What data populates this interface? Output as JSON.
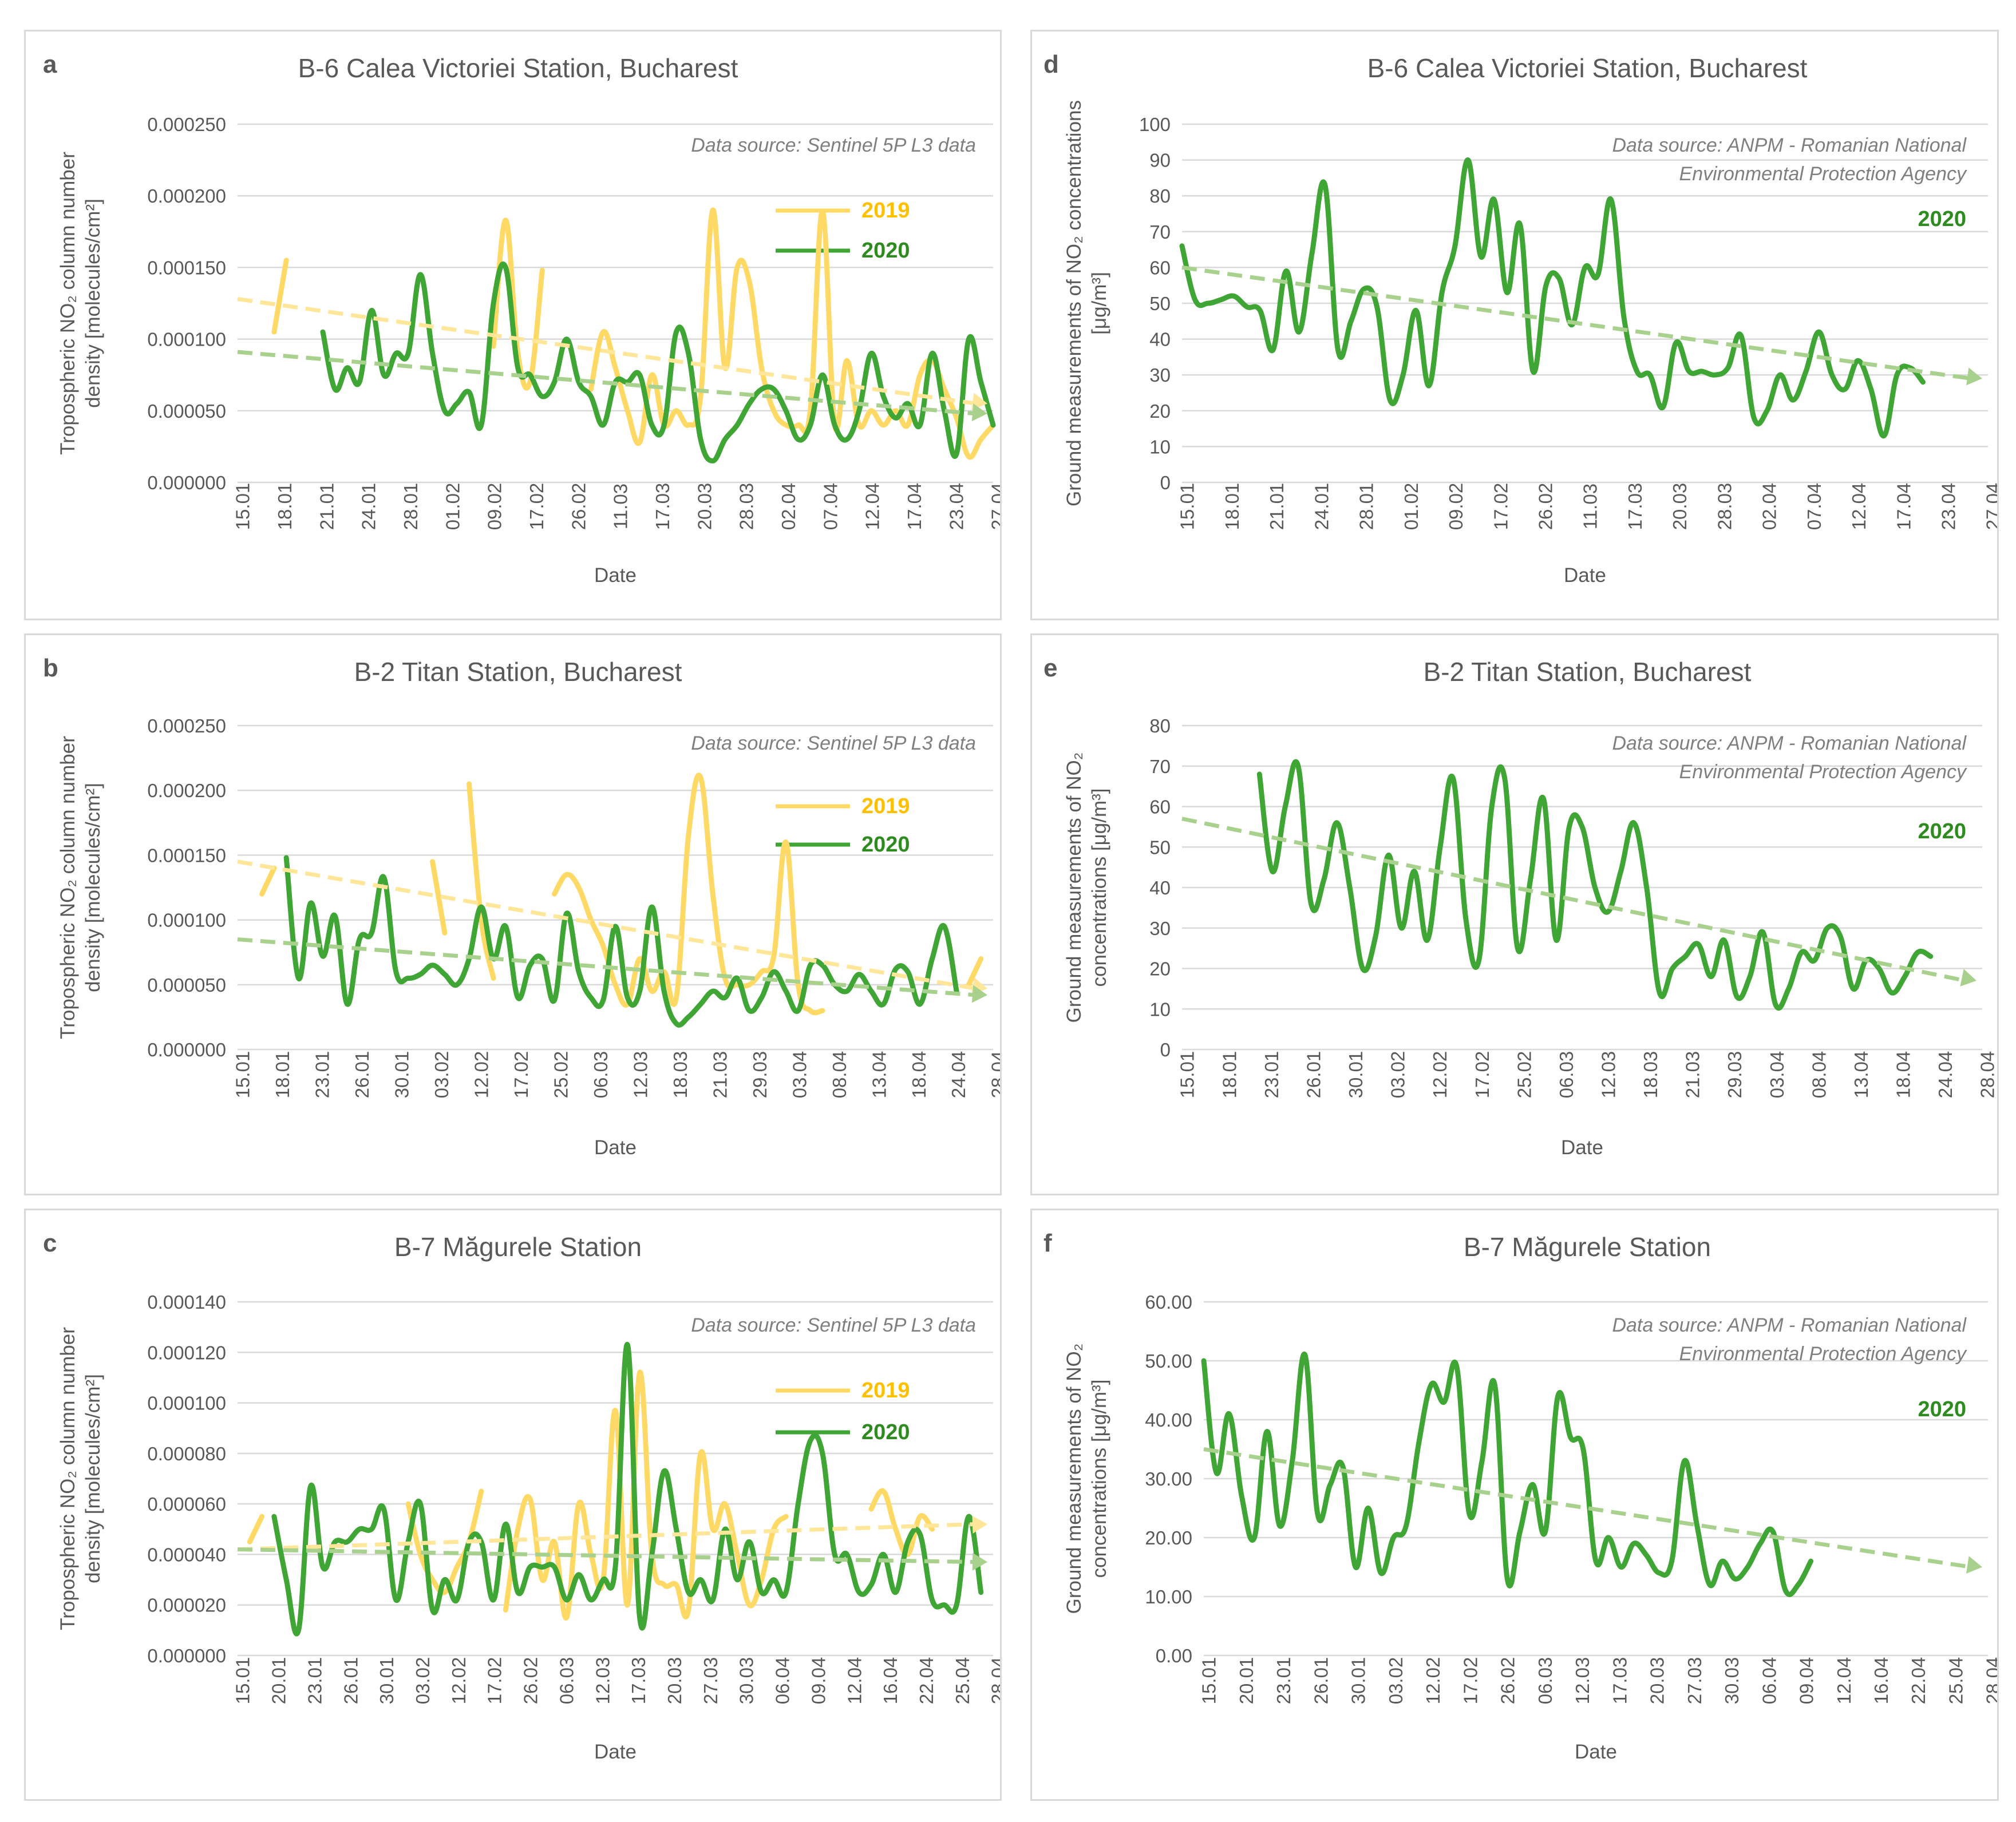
{
  "colors": {
    "y2019": "#FFD966",
    "y2020": "#3FA535",
    "trend2019": "#FFE699",
    "trend2020": "#A9D18E",
    "leg2019": "#FFC000",
    "leg2020": "#2E8B1F"
  },
  "chart_data": [
    {
      "id": "a",
      "letter": "a",
      "type": "line",
      "title": "B-6 Calea Victoriei Station, Bucharest",
      "source": [
        "Data source: Sentinel 5P L3 data"
      ],
      "legend": [
        "2019",
        "2020"
      ],
      "ylabel": [
        "Tropospheric NO₂ column number",
        "density [molecules/cm²]"
      ],
      "xlabel": "Date",
      "ylim": [
        0,
        0.00025
      ],
      "yticks": [
        "0.000000",
        "0.000050",
        "0.000100",
        "0.000150",
        "0.000200",
        "0.000250"
      ],
      "xticks": [
        "15.01",
        "18.01",
        "21.01",
        "24.01",
        "28.01",
        "01.02",
        "09.02",
        "17.02",
        "26.02",
        "11.03",
        "17.03",
        "20.03",
        "28.03",
        "02.04",
        "07.04",
        "12.04",
        "17.04",
        "23.04",
        "27.04"
      ],
      "n": 63,
      "series": [
        {
          "name": "2019",
          "values": [
            null,
            null,
            null,
            0.000105,
            0.000155,
            null,
            null,
            null,
            null,
            null,
            null,
            null,
            null,
            null,
            null,
            null,
            null,
            null,
            null,
            null,
            null,
            9.5e-05,
            0.000183,
            9e-05,
            7e-05,
            0.000148,
            null,
            null,
            null,
            6.5e-05,
            0.000105,
            8e-05,
            5e-05,
            2.8e-05,
            7.5e-05,
            4e-05,
            5e-05,
            4e-05,
            6e-05,
            0.00019,
            8e-05,
            0.00015,
            0.00014,
            8e-05,
            5e-05,
            4e-05,
            4e-05,
            5e-05,
            0.000189,
            4e-05,
            8.5e-05,
            4e-05,
            5e-05,
            4e-05,
            5e-05,
            4e-05,
            7.5e-05,
            8.5e-05,
            6.5e-05,
            4.5e-05,
            1.8e-05,
            3e-05,
            4e-05
          ]
        },
        {
          "name": "2020",
          "values": [
            null,
            null,
            null,
            null,
            null,
            null,
            null,
            0.000105,
            6.5e-05,
            8e-05,
            7e-05,
            0.00012,
            7.5e-05,
            9e-05,
            9e-05,
            0.000145,
            9e-05,
            5e-05,
            5.5e-05,
            6.3e-05,
            4e-05,
            0.000125,
            0.00015,
            8e-05,
            7.5e-05,
            6e-05,
            7e-05,
            0.0001,
            7e-05,
            6e-05,
            4e-05,
            7e-05,
            7e-05,
            7.5e-05,
            4e-05,
            4e-05,
            0.000105,
            9e-05,
            3e-05,
            1.5e-05,
            3e-05,
            4e-05,
            5.5e-05,
            6.5e-05,
            6.5e-05,
            5e-05,
            3e-05,
            4e-05,
            7.5e-05,
            4e-05,
            3e-05,
            5e-05,
            9e-05,
            6e-05,
            4.5e-05,
            5.5e-05,
            4e-05,
            9e-05,
            5e-05,
            2e-05,
            0.0001,
            7e-05,
            4e-05
          ]
        }
      ],
      "trends": [
        {
          "name": "2019",
          "from": 0.000128,
          "to": 5.5e-05
        },
        {
          "name": "2020",
          "from": 9.1e-05,
          "to": 4.8e-05
        }
      ]
    },
    {
      "id": "b",
      "letter": "b",
      "type": "line",
      "title": "B-2 Titan Station, Bucharest",
      "source": [
        "Data source: Sentinel 5P L3 data"
      ],
      "legend": [
        "2019",
        "2020"
      ],
      "ylabel": [
        "Tropospheric NO₂ column number",
        "density [molecules/cm²]"
      ],
      "xlabel": "Date",
      "ylim": [
        0,
        0.00025
      ],
      "yticks": [
        "0.000000",
        "0.000050",
        "0.000100",
        "0.000150",
        "0.000200",
        "0.000250"
      ],
      "xticks": [
        "15.01",
        "18.01",
        "23.01",
        "26.01",
        "30.01",
        "03.02",
        "12.02",
        "17.02",
        "25.02",
        "06.03",
        "12.03",
        "18.03",
        "21.03",
        "29.03",
        "03.04",
        "08.04",
        "13.04",
        "18.04",
        "24.04",
        "28.04"
      ],
      "n": 63,
      "series": [
        {
          "name": "2019",
          "values": [
            null,
            null,
            0.00012,
            0.00014,
            null,
            null,
            null,
            null,
            null,
            null,
            null,
            null,
            null,
            null,
            null,
            null,
            0.000145,
            9e-05,
            null,
            0.000205,
            0.0001,
            5.5e-05,
            null,
            null,
            null,
            null,
            0.00012,
            0.000135,
            0.000125,
            0.0001,
            8e-05,
            5e-05,
            3.5e-05,
            7e-05,
            4.5e-05,
            6e-05,
            4e-05,
            0.000165,
            0.00021,
            0.00012,
            5.5e-05,
            5e-05,
            5e-05,
            6e-05,
            7.2e-05,
            0.00016,
            5e-05,
            3e-05,
            3e-05,
            null,
            null,
            null,
            null,
            null,
            null,
            null,
            null,
            null,
            null,
            null,
            5e-05,
            7e-05,
            null
          ]
        },
        {
          "name": "2020",
          "values": [
            null,
            null,
            null,
            null,
            0.000148,
            5.5e-05,
            0.000113,
            7.2e-05,
            0.000103,
            3.5e-05,
            8.5e-05,
            9e-05,
            0.000133,
            6e-05,
            5.5e-05,
            5.8e-05,
            6.5e-05,
            5.8e-05,
            5e-05,
            7e-05,
            0.00011,
            7e-05,
            9.5e-05,
            4e-05,
            6.5e-05,
            7e-05,
            3.8e-05,
            0.000105,
            6e-05,
            4e-05,
            3.8e-05,
            9.5e-05,
            4e-05,
            4.5e-05,
            0.00011,
            4.5e-05,
            2e-05,
            2.5e-05,
            3.5e-05,
            4.5e-05,
            4e-05,
            5.5e-05,
            3e-05,
            4e-05,
            6e-05,
            4.5e-05,
            3e-05,
            6.5e-05,
            6.5e-05,
            5e-05,
            4.5e-05,
            5.8e-05,
            4.5e-05,
            3.5e-05,
            6.2e-05,
            6e-05,
            3.5e-05,
            7e-05,
            9.5e-05,
            4.5e-05,
            null,
            null,
            null
          ]
        }
      ],
      "trends": [
        {
          "name": "2019",
          "from": 0.000145,
          "to": 4.7e-05
        },
        {
          "name": "2020",
          "from": 8.5e-05,
          "to": 4.2e-05
        }
      ]
    },
    {
      "id": "c",
      "letter": "c",
      "type": "line",
      "title": "B-7 Măgurele Station",
      "source": [
        "Data source: Sentinel 5P L3 data"
      ],
      "legend": [
        "2019",
        "2020"
      ],
      "ylabel": [
        "Tropospheric NO₂ column number",
        "density [molecules/cm²]"
      ],
      "xlabel": "Date",
      "ylim": [
        0,
        0.00014
      ],
      "yticks": [
        "0.000000",
        "0.000020",
        "0.000040",
        "0.000060",
        "0.000080",
        "0.000100",
        "0.000120",
        "0.000140"
      ],
      "xticks": [
        "15.01",
        "20.01",
        "23.01",
        "26.01",
        "30.01",
        "03.02",
        "12.02",
        "17.02",
        "26.02",
        "06.03",
        "12.03",
        "17.03",
        "20.03",
        "27.03",
        "30.03",
        "06.04",
        "09.04",
        "12.04",
        "16.04",
        "22.04",
        "25.04",
        "28.04"
      ],
      "n": 63,
      "series": [
        {
          "name": "2019",
          "values": [
            null,
            4.5e-05,
            5.5e-05,
            null,
            null,
            null,
            null,
            null,
            null,
            null,
            null,
            null,
            null,
            null,
            6e-05,
            4e-05,
            3e-05,
            2.5e-05,
            3.5e-05,
            4.5e-05,
            6.5e-05,
            null,
            1.8e-05,
            5e-05,
            6.2e-05,
            3e-05,
            4.5e-05,
            1.5e-05,
            6e-05,
            4e-05,
            3e-05,
            9.7e-05,
            2e-05,
            0.000112,
            4e-05,
            2.8e-05,
            2.8e-05,
            1.8e-05,
            8e-05,
            5e-05,
            6e-05,
            4e-05,
            2e-05,
            3e-05,
            5e-05,
            5.5e-05,
            null,
            null,
            null,
            null,
            null,
            null,
            5.8e-05,
            6.5e-05,
            5e-05,
            4e-05,
            5.5e-05,
            5e-05,
            null,
            null,
            null,
            null,
            null
          ]
        },
        {
          "name": "2020",
          "values": [
            null,
            null,
            null,
            5.5e-05,
            3e-05,
            1e-05,
            6.7e-05,
            3.5e-05,
            4.5e-05,
            4.5e-05,
            5e-05,
            5e-05,
            5.8e-05,
            2.2e-05,
            4.5e-05,
            6e-05,
            1.8e-05,
            3e-05,
            2.2e-05,
            4.5e-05,
            4.5e-05,
            2.2e-05,
            5.2e-05,
            2.5e-05,
            3.5e-05,
            3.5e-05,
            3.5e-05,
            2.2e-05,
            3.2e-05,
            2.2e-05,
            3e-05,
            3.5e-05,
            0.000123,
            1.5e-05,
            4e-05,
            7.3e-05,
            5e-05,
            2.5e-05,
            3e-05,
            2.2e-05,
            5e-05,
            3e-05,
            4.5e-05,
            2.5e-05,
            3e-05,
            2.5e-05,
            6e-05,
            8.5e-05,
            8e-05,
            4e-05,
            4e-05,
            2.5e-05,
            2.8e-05,
            4e-05,
            2.5e-05,
            4.5e-05,
            4.8e-05,
            2.2e-05,
            2e-05,
            2e-05,
            5.5e-05,
            2.5e-05,
            null
          ]
        }
      ],
      "trends": [
        {
          "name": "2019",
          "from": 4.2e-05,
          "to": 5.2e-05
        },
        {
          "name": "2020",
          "from": 4.2e-05,
          "to": 3.7e-05
        }
      ]
    },
    {
      "id": "d",
      "letter": "d",
      "type": "line",
      "title": "B-6 Calea Victoriei Station, Bucharest",
      "source": [
        "Data source: ANPM - Romanian National",
        "Environmental Protection Agency"
      ],
      "legend": [
        "2020"
      ],
      "ylabel": [
        "Ground measurements of NO₂ concentrations",
        "[μg/m³]"
      ],
      "xlabel": "Date",
      "ylim": [
        0,
        100
      ],
      "yticks": [
        "0",
        "10",
        "20",
        "30",
        "40",
        "50",
        "60",
        "70",
        "80",
        "90",
        "100"
      ],
      "xticks": [
        "15.01",
        "18.01",
        "21.01",
        "24.01",
        "28.01",
        "01.02",
        "09.02",
        "17.02",
        "26.02",
        "11.03",
        "17.03",
        "20.03",
        "28.03",
        "02.04",
        "07.04",
        "12.04",
        "17.04",
        "23.04",
        "27.04"
      ],
      "n": 63,
      "series": [
        {
          "name": "2020",
          "values": [
            66,
            51,
            50,
            51,
            52,
            49,
            48,
            37,
            59,
            42,
            64,
            83,
            37,
            45,
            54,
            49,
            23,
            30,
            48,
            27,
            53,
            66,
            90,
            63,
            79,
            53,
            72,
            31,
            55,
            57,
            44,
            60,
            58,
            79,
            46,
            31,
            30,
            21,
            39,
            31,
            31,
            30,
            32,
            41,
            18,
            20,
            30,
            23,
            31,
            42,
            30,
            26,
            34,
            26,
            13,
            30,
            32,
            28,
            null,
            null,
            null,
            null,
            null
          ]
        }
      ],
      "trends": [
        {
          "name": "2020",
          "from": 60,
          "to": 29
        }
      ]
    },
    {
      "id": "e",
      "letter": "e",
      "type": "line",
      "title": "B-2 Titan Station, Bucharest",
      "source": [
        "Data source: ANPM - Romanian National",
        "Environmental Protection Agency"
      ],
      "legend": [
        "2020"
      ],
      "ylabel": [
        "Ground measurements of NO₂",
        "concentrations [μg/m³]"
      ],
      "xlabel": "Date",
      "ylim": [
        0,
        80
      ],
      "yticks": [
        "0",
        "10",
        "20",
        "30",
        "40",
        "50",
        "60",
        "70",
        "80"
      ],
      "xticks": [
        "15.01",
        "18.01",
        "23.01",
        "26.01",
        "30.01",
        "03.02",
        "12.02",
        "17.02",
        "25.02",
        "06.03",
        "12.03",
        "18.03",
        "21.03",
        "29.03",
        "03.04",
        "08.04",
        "13.04",
        "18.04",
        "24.04",
        "28.04"
      ],
      "n": 63,
      "series": [
        {
          "name": "2020",
          "values": [
            null,
            null,
            null,
            null,
            null,
            null,
            68,
            44,
            60,
            70,
            36,
            42,
            56,
            40,
            20,
            28,
            48,
            30,
            44,
            27,
            50,
            67,
            32,
            22,
            60,
            67,
            25,
            42,
            62,
            27,
            55,
            55,
            40,
            34,
            44,
            56,
            40,
            14,
            20,
            23,
            26,
            18,
            27,
            13,
            18,
            29,
            11,
            15,
            24,
            22,
            30,
            28,
            15,
            22,
            20,
            14,
            18,
            24,
            23,
            null,
            null,
            null,
            null
          ]
        }
      ],
      "trends": [
        {
          "name": "2020",
          "from": 57,
          "to": 17
        }
      ]
    },
    {
      "id": "f",
      "letter": "f",
      "type": "line",
      "title": "B-7 Măgurele Station",
      "source": [
        "Data source: ANPM - Romanian National",
        "Environmental Protection Agency"
      ],
      "legend": [
        "2020"
      ],
      "ylabel": [
        "Ground measurements of NO₂",
        "concentrations [μg/m³]"
      ],
      "xlabel": "Date",
      "ylim": [
        0,
        60
      ],
      "yticks": [
        "0.00",
        "10.00",
        "20.00",
        "30.00",
        "40.00",
        "50.00",
        "60.00"
      ],
      "xticks": [
        "15.01",
        "20.01",
        "23.01",
        "26.01",
        "30.01",
        "03.02",
        "12.02",
        "17.02",
        "26.02",
        "06.03",
        "12.03",
        "17.03",
        "20.03",
        "27.03",
        "30.03",
        "06.04",
        "09.04",
        "12.04",
        "16.04",
        "22.04",
        "25.04",
        "28.04"
      ],
      "n": 63,
      "series": [
        {
          "name": "2020",
          "values": [
            50,
            31,
            41,
            27,
            20,
            38,
            22,
            33,
            51,
            24,
            29,
            32,
            15,
            25,
            14,
            20,
            22,
            36,
            46,
            43,
            49,
            24,
            33,
            46,
            13,
            21,
            29,
            21,
            44,
            37,
            35,
            16,
            20,
            15,
            19,
            17,
            14,
            16,
            33,
            22,
            12,
            16,
            13,
            15,
            19,
            21,
            11,
            12,
            16,
            null,
            null,
            null,
            null,
            null,
            null,
            null,
            null,
            null,
            null,
            null,
            null,
            null,
            null
          ]
        }
      ],
      "trends": [
        {
          "name": "2020",
          "from": 35,
          "to": 15
        }
      ]
    }
  ]
}
